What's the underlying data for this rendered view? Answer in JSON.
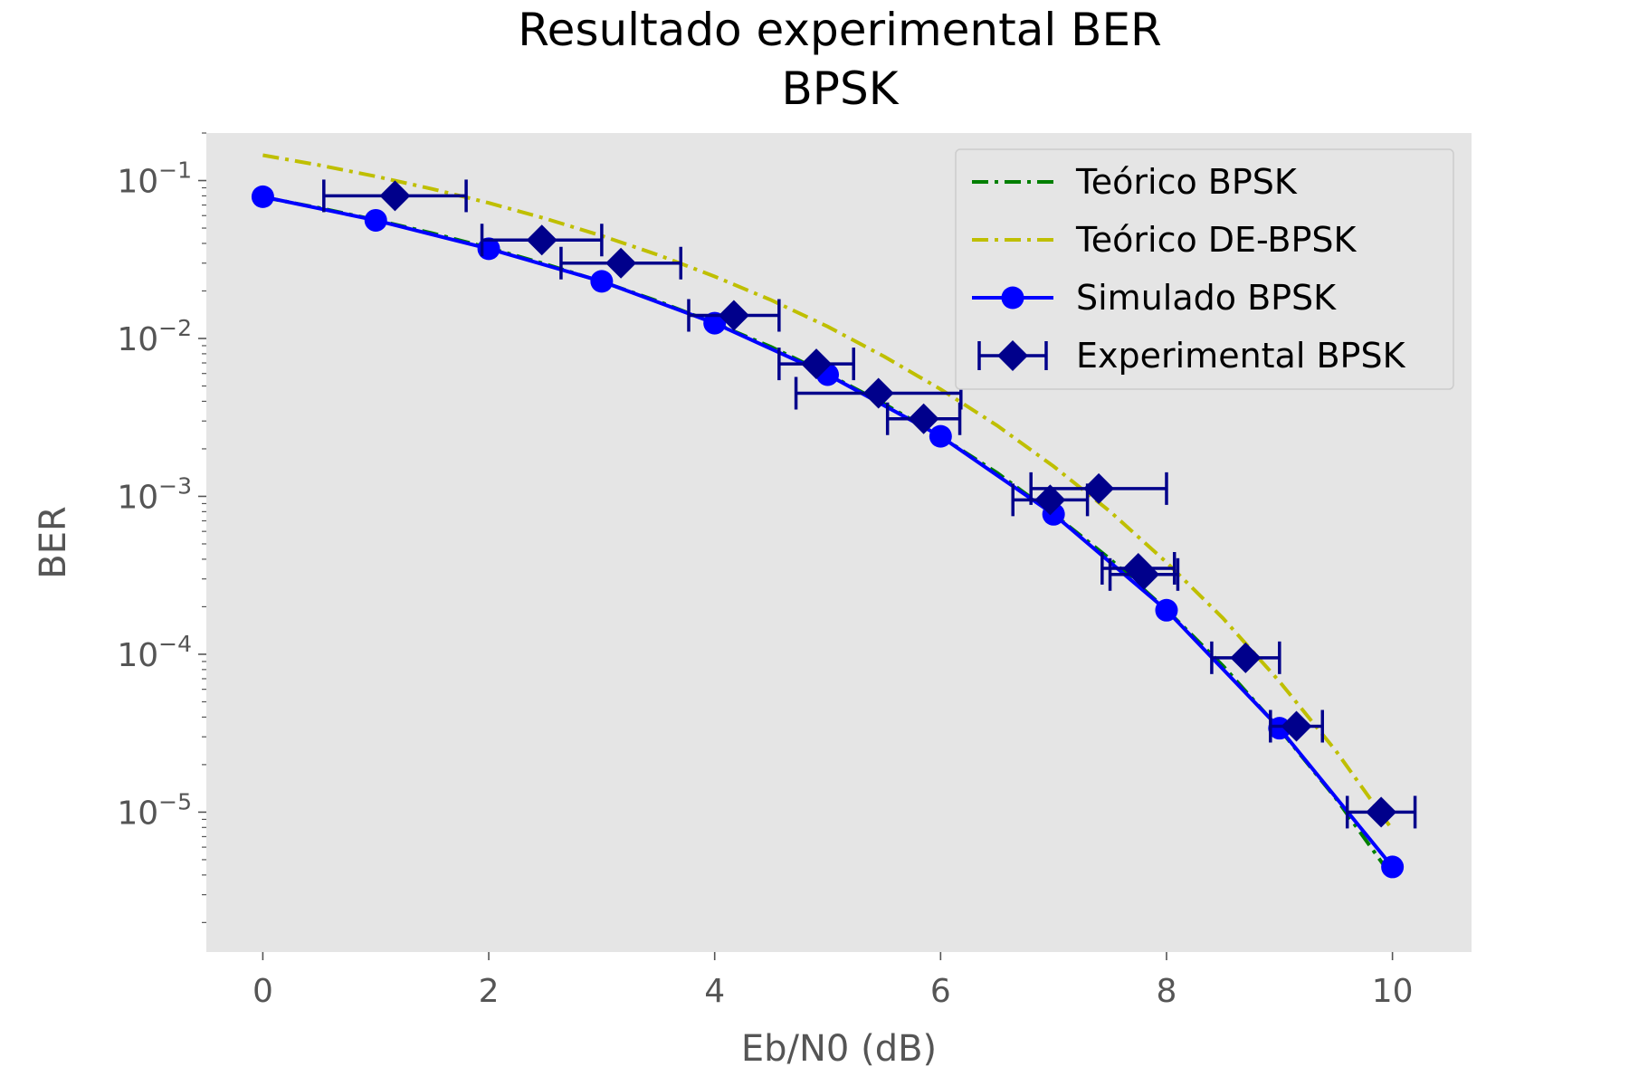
{
  "chart_data": {
    "type": "scatter",
    "title": "Resultado experimental BER",
    "subtitle": "BPSK",
    "xlabel": "Eb/N0 (dB)",
    "ylabel": "BER",
    "xscale": "linear",
    "yscale": "log",
    "xlim": [
      -0.5,
      10.7
    ],
    "ylim": [
      1.3e-06,
      0.2
    ],
    "xticks": [
      "0",
      "2",
      "4",
      "6",
      "8",
      "10"
    ],
    "xtick_values": [
      0,
      2,
      4,
      6,
      8,
      10
    ],
    "yticks": [
      "10",
      "10",
      "10",
      "10",
      "10"
    ],
    "ytick_exponents": [
      "−1",
      "−2",
      "−3",
      "−4",
      "−5"
    ],
    "ytick_values": [
      0.1,
      0.01,
      0.001,
      0.0001,
      1e-05
    ],
    "grid": false,
    "background": "#e5e5e5",
    "legend_position": "top-right",
    "series": [
      {
        "name": "Teórico BPSK",
        "kind": "line",
        "style": "dashdot",
        "color": "#007f00",
        "x": [
          0,
          0.5,
          1,
          1.5,
          2,
          2.5,
          3,
          3.5,
          4,
          4.5,
          5,
          5.5,
          6,
          6.5,
          7,
          7.5,
          8,
          8.5,
          9,
          9.5,
          10
        ],
        "y": [
          0.0786,
          0.0671,
          0.0563,
          0.0464,
          0.0375,
          0.0296,
          0.0229,
          0.0172,
          0.0125,
          0.00884,
          0.00595,
          0.00386,
          0.00239,
          0.00141,
          0.000773,
          0.000401,
          0.000191,
          8.45e-05,
          3.36e-05,
          1.22e-05,
          3.87e-06
        ]
      },
      {
        "name": "Teórico DE-BPSK",
        "kind": "line",
        "style": "dashdot",
        "color": "#bfbf00",
        "x": [
          0,
          0.5,
          1,
          1.5,
          2,
          2.5,
          3,
          3.5,
          4,
          4.5,
          5,
          5.5,
          6,
          6.5,
          7,
          7.5,
          8,
          8.5,
          9,
          9.5,
          10
        ],
        "y": [
          0.1448,
          0.1252,
          0.1063,
          0.0885,
          0.0722,
          0.0575,
          0.0447,
          0.0338,
          0.0247,
          0.0175,
          0.0119,
          0.00769,
          0.00477,
          0.00281,
          0.00155,
          0.000802,
          0.000382,
          0.000169,
          6.72e-05,
          2.44e-05,
          7.74e-06
        ]
      },
      {
        "name": "Simulado BPSK",
        "kind": "line-markers",
        "marker": "circle",
        "color": "#0000ff",
        "x": [
          0,
          1,
          2,
          3,
          4,
          5,
          6,
          7,
          8,
          9,
          10
        ],
        "y": [
          0.079,
          0.056,
          0.037,
          0.023,
          0.0125,
          0.0059,
          0.0024,
          0.00077,
          0.00019,
          3.4e-05,
          4.5e-06
        ]
      },
      {
        "name": "Experimental BPSK",
        "kind": "errorbar",
        "marker": "diamond",
        "color": "#00008b",
        "points": [
          {
            "x": 1.17,
            "y": 0.08,
            "xerr": 0.63
          },
          {
            "x": 2.47,
            "y": 0.042,
            "xerr": 0.53
          },
          {
            "x": 3.17,
            "y": 0.03,
            "xerr": 0.53
          },
          {
            "x": 4.17,
            "y": 0.014,
            "xerr": 0.4
          },
          {
            "x": 4.9,
            "y": 0.0069,
            "xerr": 0.33
          },
          {
            "x": 5.45,
            "y": 0.0045,
            "xerr": 0.73
          },
          {
            "x": 5.85,
            "y": 0.0031,
            "xerr": 0.32
          },
          {
            "x": 6.97,
            "y": 0.00095,
            "xerr": 0.33
          },
          {
            "x": 7.4,
            "y": 0.00112,
            "xerr": 0.6
          },
          {
            "x": 7.75,
            "y": 0.00035,
            "xerr": 0.32
          },
          {
            "x": 7.8,
            "y": 0.00032,
            "xerr": 0.3
          },
          {
            "x": 8.7,
            "y": 9.5e-05,
            "xerr": 0.3
          },
          {
            "x": 9.15,
            "y": 3.5e-05,
            "xerr": 0.23
          },
          {
            "x": 9.9,
            "y": 1e-05,
            "xerr": 0.3
          }
        ]
      }
    ]
  }
}
